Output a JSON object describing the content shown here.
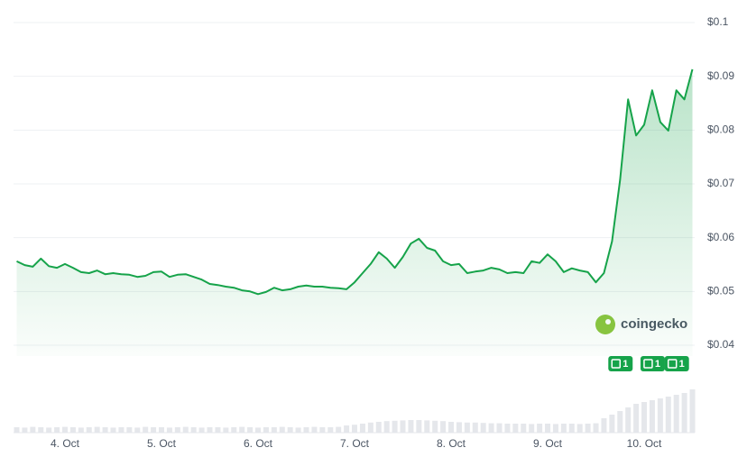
{
  "chart_data": {
    "type": "line",
    "categories": [
      null,
      null,
      null,
      null,
      null,
      null,
      "4. Oct",
      null,
      null,
      null,
      null,
      null,
      null,
      null,
      null,
      null,
      null,
      null,
      "5. Oct",
      null,
      null,
      null,
      null,
      null,
      null,
      null,
      null,
      null,
      null,
      null,
      "6. Oct",
      null,
      null,
      null,
      null,
      null,
      null,
      null,
      null,
      null,
      null,
      null,
      "7. Oct",
      null,
      null,
      null,
      null,
      null,
      null,
      null,
      null,
      null,
      null,
      null,
      "8. Oct",
      null,
      null,
      null,
      null,
      null,
      null,
      null,
      null,
      null,
      null,
      null,
      "9. Oct",
      null,
      null,
      null,
      null,
      null,
      null,
      null,
      null,
      null,
      null,
      null,
      "10. Oct",
      null,
      null,
      null,
      null,
      null,
      null
    ],
    "series": [
      {
        "color": "#16a34a",
        "values": [
          0.0556,
          0.0549,
          0.0546,
          0.0561,
          0.0547,
          0.0544,
          0.0551,
          0.0544,
          0.0536,
          0.0534,
          0.0539,
          0.0532,
          0.0534,
          0.0532,
          0.0531,
          0.0527,
          0.0529,
          0.0536,
          0.0537,
          0.0527,
          0.0531,
          0.0532,
          0.0527,
          0.0522,
          0.0514,
          0.0512,
          0.0509,
          0.0507,
          0.0502,
          0.05,
          0.0495,
          0.0499,
          0.0507,
          0.0502,
          0.0504,
          0.0509,
          0.0511,
          0.0509,
          0.0509,
          0.0507,
          0.0506,
          0.0504,
          0.0517,
          0.0534,
          0.0551,
          0.0573,
          0.0561,
          0.0544,
          0.0564,
          0.0589,
          0.0598,
          0.0581,
          0.0576,
          0.0556,
          0.0549,
          0.0551,
          0.0534,
          0.0537,
          0.0539,
          0.0544,
          0.0541,
          0.0534,
          0.0536,
          0.0534,
          0.0556,
          0.0553,
          0.0569,
          0.0556,
          0.0536,
          0.0543,
          0.0539,
          0.0536,
          0.0517,
          0.0534,
          0.0593,
          0.0707,
          0.0857,
          0.079,
          0.081,
          0.0874,
          0.0815,
          0.0799,
          0.0874,
          0.0857,
          0.0913
        ]
      }
    ],
    "volume": {
      "color": "#e5e7eb",
      "values": [
        1.5,
        1.4,
        1.6,
        1.5,
        1.4,
        1.5,
        1.6,
        1.5,
        1.4,
        1.5,
        1.6,
        1.5,
        1.4,
        1.5,
        1.5,
        1.4,
        1.6,
        1.5,
        1.5,
        1.4,
        1.5,
        1.6,
        1.5,
        1.4,
        1.5,
        1.5,
        1.4,
        1.5,
        1.6,
        1.5,
        1.4,
        1.5,
        1.5,
        1.6,
        1.5,
        1.4,
        1.5,
        1.6,
        1.5,
        1.5,
        1.6,
        2.0,
        2.2,
        2.5,
        2.8,
        3.0,
        3.2,
        3.3,
        3.4,
        3.5,
        3.5,
        3.4,
        3.3,
        3.2,
        3.0,
        2.9,
        2.8,
        2.8,
        2.7,
        2.6,
        2.6,
        2.5,
        2.5,
        2.5,
        2.4,
        2.5,
        2.5,
        2.4,
        2.5,
        2.5,
        2.4,
        2.5,
        2.6,
        4,
        5,
        6,
        7,
        8,
        8.5,
        9,
        9.5,
        10,
        10.5,
        11,
        12
      ]
    },
    "ylim": [
      0.04,
      0.1
    ],
    "yticks": [
      {
        "value": 0.04,
        "label": "$0.04"
      },
      {
        "value": 0.05,
        "label": "$0.05"
      },
      {
        "value": 0.06,
        "label": "$0.06"
      },
      {
        "value": 0.07,
        "label": "$0.07"
      },
      {
        "value": 0.08,
        "label": "$0.08"
      },
      {
        "value": 0.09,
        "label": "$0.09"
      },
      {
        "value": 0.1,
        "label": "$0.1"
      }
    ],
    "grid": true,
    "annotations": [
      {
        "at": 75,
        "text": "1"
      },
      {
        "at": 79,
        "text": "1"
      },
      {
        "at": 82,
        "text": "1"
      }
    ],
    "watermark": "coingecko"
  }
}
